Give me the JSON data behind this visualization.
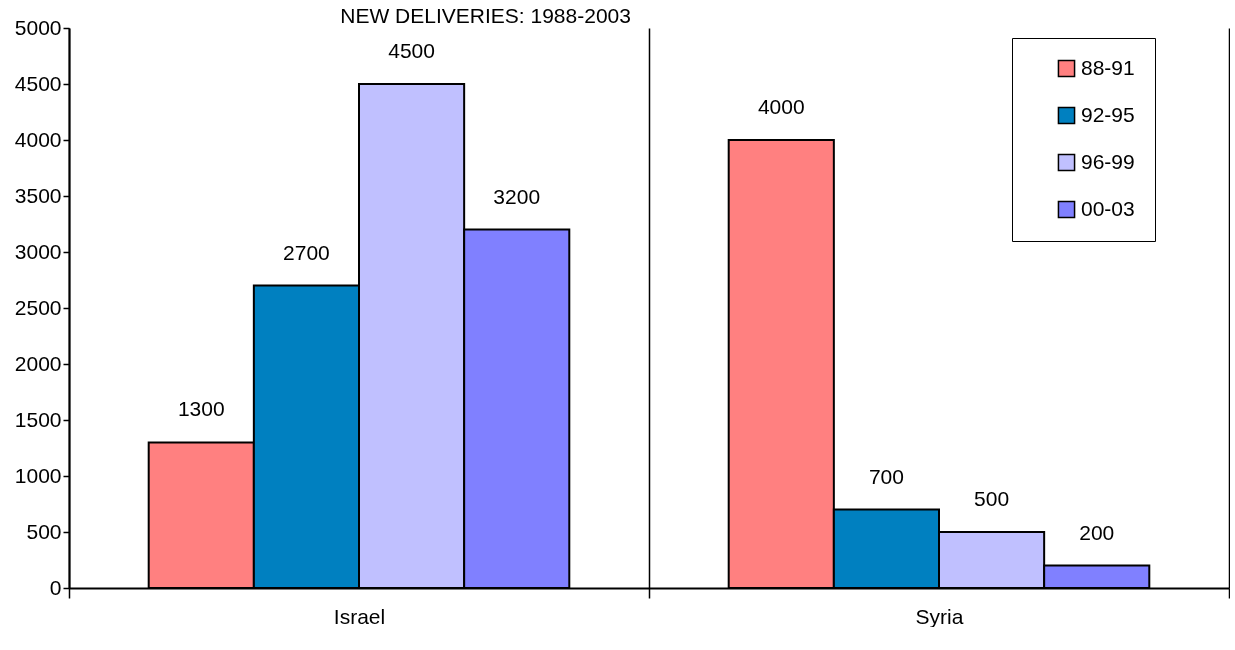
{
  "chart_data": {
    "type": "bar",
    "title": "NEW DELIVERIES: 1988-2003",
    "categories": [
      "Israel",
      "Syria"
    ],
    "series": [
      {
        "name": "88-91",
        "color": "#ff8080",
        "values": [
          1300,
          4000
        ]
      },
      {
        "name": "92-95",
        "color": "#0080c0",
        "values": [
          2700,
          700
        ]
      },
      {
        "name": "96-99",
        "color": "#c0c0ff",
        "values": [
          4500,
          500
        ]
      },
      {
        "name": "00-03",
        "color": "#8080ff",
        "values": [
          3200,
          200
        ]
      }
    ],
    "ylim": [
      0,
      5000
    ],
    "yticks": [
      0,
      500,
      1000,
      1500,
      2000,
      2500,
      3000,
      3500,
      4000,
      4500,
      5000
    ],
    "grid": "x",
    "legend": "top right",
    "data_labels": true
  }
}
